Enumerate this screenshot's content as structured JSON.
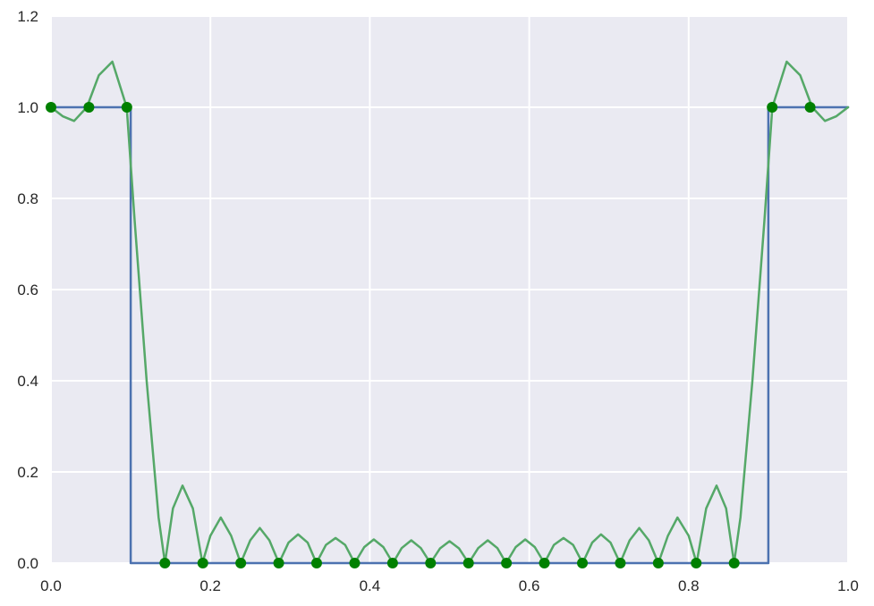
{
  "chart_data": {
    "type": "line",
    "title": "",
    "xlabel": "",
    "ylabel": "",
    "xlim": [
      0.0,
      1.0
    ],
    "ylim": [
      0.0,
      1.2
    ],
    "grid": true,
    "x_ticks": [
      "0.0",
      "0.2",
      "0.4",
      "0.6",
      "0.8",
      "1.0"
    ],
    "y_ticks": [
      "0.0",
      "0.2",
      "0.4",
      "0.6",
      "0.8",
      "1.0",
      "1.2"
    ],
    "colors": {
      "plot_background": "#EAEAF2",
      "grid": "#FFFFFF",
      "step_series": "#4C72B0",
      "interpolant_series": "#55A868",
      "sample_markers": "#008000"
    },
    "series": [
      {
        "kind": "step",
        "color": "#4C72B0",
        "x": [
          0.0,
          0.1,
          0.1,
          0.9,
          0.9,
          1.0
        ],
        "y": [
          1.0,
          1.0,
          0.0,
          0.0,
          1.0,
          1.0
        ]
      },
      {
        "kind": "interpolant_curve",
        "color": "#55A868",
        "x": [
          0.0,
          0.015,
          0.029,
          0.045,
          0.06,
          0.077,
          0.095,
          0.105,
          0.12,
          0.135,
          0.143,
          0.153,
          0.165,
          0.178,
          0.19,
          0.2,
          0.213,
          0.226,
          0.238,
          0.25,
          0.262,
          0.274,
          0.286,
          0.298,
          0.31,
          0.322,
          0.333,
          0.345,
          0.357,
          0.369,
          0.381,
          0.393,
          0.405,
          0.417,
          0.429,
          0.44,
          0.452,
          0.464,
          0.476,
          0.488,
          0.5,
          0.512,
          0.524,
          0.536,
          0.548,
          0.56,
          0.571,
          0.583,
          0.595,
          0.607,
          0.619,
          0.631,
          0.643,
          0.655,
          0.667,
          0.679,
          0.69,
          0.702,
          0.714,
          0.726,
          0.738,
          0.75,
          0.762,
          0.774,
          0.786,
          0.8,
          0.81,
          0.822,
          0.835,
          0.847,
          0.857,
          0.865,
          0.88,
          0.895,
          0.905,
          0.923,
          0.94,
          0.955,
          0.971,
          0.985,
          1.0
        ],
        "y": [
          1.0,
          0.98,
          0.97,
          1.0,
          1.07,
          1.1,
          1.0,
          0.75,
          0.4,
          0.1,
          0.0,
          0.12,
          0.17,
          0.12,
          0.0,
          0.06,
          0.1,
          0.06,
          0.0,
          0.05,
          0.077,
          0.05,
          0.0,
          0.045,
          0.063,
          0.045,
          0.0,
          0.04,
          0.055,
          0.04,
          0.0,
          0.035,
          0.052,
          0.035,
          0.0,
          0.033,
          0.05,
          0.033,
          0.0,
          0.032,
          0.048,
          0.032,
          0.0,
          0.033,
          0.05,
          0.033,
          0.0,
          0.035,
          0.052,
          0.035,
          0.0,
          0.04,
          0.055,
          0.04,
          0.0,
          0.045,
          0.063,
          0.045,
          0.0,
          0.05,
          0.077,
          0.05,
          0.0,
          0.06,
          0.1,
          0.06,
          0.0,
          0.12,
          0.17,
          0.12,
          0.0,
          0.1,
          0.4,
          0.75,
          1.0,
          1.1,
          1.07,
          1.0,
          0.97,
          0.98,
          1.0
        ]
      }
    ],
    "markers": {
      "color": "#008000",
      "x": [
        0.0,
        0.0476,
        0.0952,
        0.1429,
        0.1905,
        0.2381,
        0.2857,
        0.3333,
        0.381,
        0.4286,
        0.4762,
        0.5238,
        0.5714,
        0.619,
        0.6667,
        0.7143,
        0.7619,
        0.8095,
        0.8571,
        0.9048,
        0.9524
      ],
      "y": [
        1.0,
        1.0,
        1.0,
        0.0,
        0.0,
        0.0,
        0.0,
        0.0,
        0.0,
        0.0,
        0.0,
        0.0,
        0.0,
        0.0,
        0.0,
        0.0,
        0.0,
        0.0,
        0.0,
        1.0,
        1.0
      ]
    }
  }
}
